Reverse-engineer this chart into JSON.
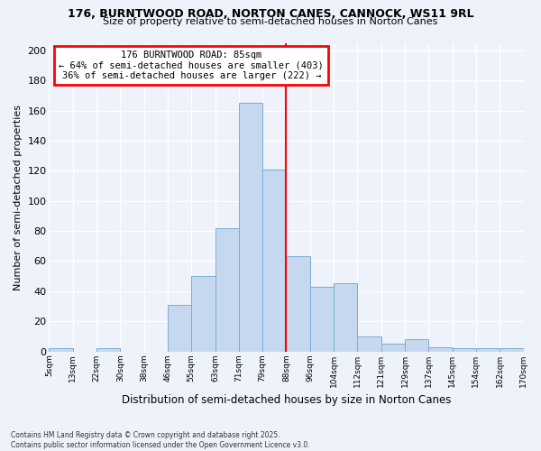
{
  "title1": "176, BURNTWOOD ROAD, NORTON CANES, CANNOCK, WS11 9RL",
  "title2": "Size of property relative to semi-detached houses in Norton Canes",
  "xlabel": "Distribution of semi-detached houses by size in Norton Canes",
  "ylabel": "Number of semi-detached properties",
  "footnote": "Contains HM Land Registry data © Crown copyright and database right 2025.\nContains public sector information licensed under the Open Government Licence v3.0.",
  "bar_labels": [
    "5sqm",
    "13sqm",
    "22sqm",
    "30sqm",
    "38sqm",
    "46sqm",
    "55sqm",
    "63sqm",
    "71sqm",
    "79sqm",
    "88sqm",
    "96sqm",
    "104sqm",
    "112sqm",
    "121sqm",
    "129sqm",
    "137sqm",
    "145sqm",
    "154sqm",
    "162sqm",
    "170sqm"
  ],
  "bar_values": [
    2,
    0,
    2,
    0,
    0,
    31,
    50,
    82,
    165,
    121,
    63,
    43,
    45,
    10,
    5,
    8,
    3,
    2,
    2,
    2
  ],
  "bar_color": "#c5d8f0",
  "bar_edge_color": "#7aadd4",
  "vline_color": "red",
  "annotation_title": "176 BURNTWOOD ROAD: 85sqm",
  "annotation_line1": "← 64% of semi-detached houses are smaller (403)",
  "annotation_line2": "36% of semi-detached houses are larger (222) →",
  "annotation_box_color": "red",
  "ylim": [
    0,
    205
  ],
  "yticks": [
    0,
    20,
    40,
    60,
    80,
    100,
    120,
    140,
    160,
    180,
    200
  ],
  "background_color": "#eef2fa",
  "grid_color": "white"
}
